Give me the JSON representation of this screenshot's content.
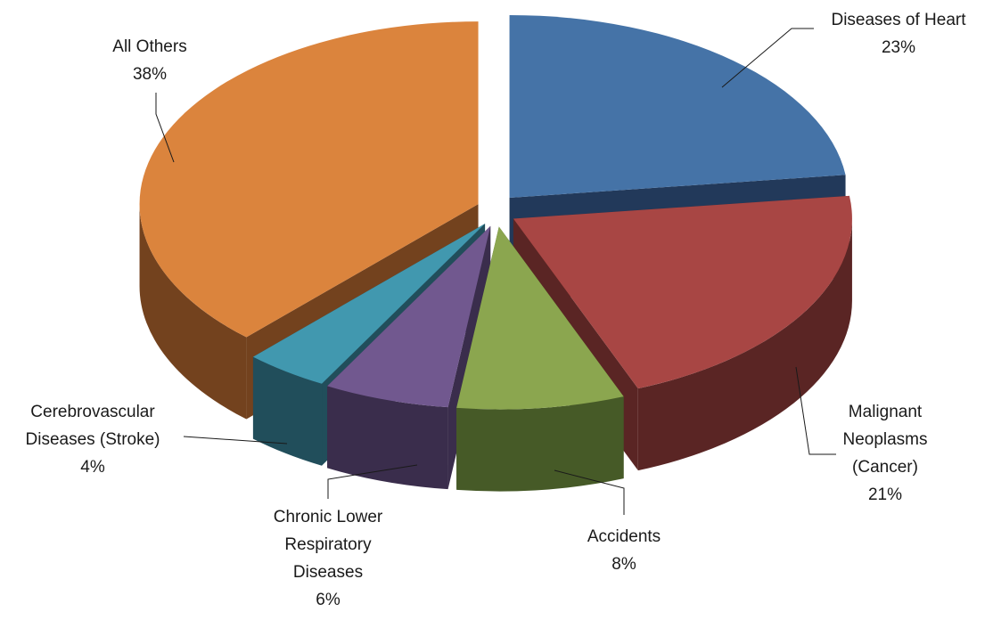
{
  "chart_data": {
    "type": "pie",
    "style": "3d-exploded",
    "legend": "none",
    "slices": [
      {
        "name": "Diseases of Heart",
        "value": 23,
        "label_lines": [
          "Diseases of Heart",
          "23%"
        ],
        "color": "#4573A7",
        "side_color": "#22395A"
      },
      {
        "name": "Malignant Neoplasms (Cancer)",
        "value": 21,
        "label_lines": [
          "Malignant",
          "Neoplasms",
          "(Cancer)",
          "21%"
        ],
        "color": "#A84644",
        "side_color": "#5A2524"
      },
      {
        "name": "Accidents",
        "value": 8,
        "label_lines": [
          "Accidents",
          "8%"
        ],
        "color": "#8BA64F",
        "side_color": "#465A27"
      },
      {
        "name": "Chronic Lower Respiratory Diseases",
        "value": 6,
        "label_lines": [
          "Chronic Lower",
          "Respiratory",
          "Diseases",
          "6%"
        ],
        "color": "#71588F",
        "side_color": "#3A2D4C"
      },
      {
        "name": "Cerebrovascular Diseases (Stroke)",
        "value": 4,
        "label_lines": [
          "Cerebrovascular",
          "Diseases (Stroke)",
          "4%"
        ],
        "color": "#4198AF",
        "side_color": "#214E5B"
      },
      {
        "name": "All Others",
        "value": 38,
        "label_lines": [
          "All Others",
          "38%"
        ],
        "color": "#DB843D",
        "side_color": "#73421E"
      }
    ]
  }
}
